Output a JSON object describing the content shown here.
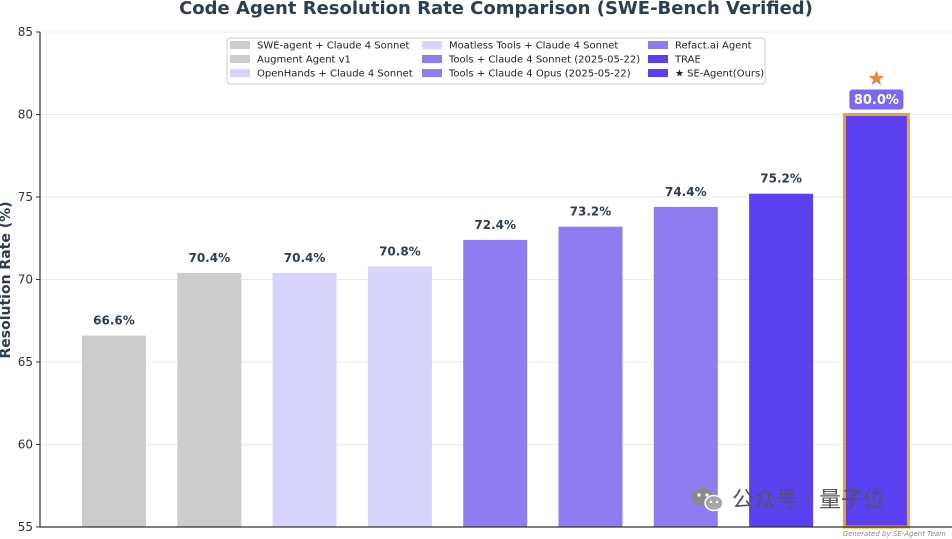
{
  "chart_data": {
    "type": "bar",
    "title": "Code Agent Resolution Rate Comparison (SWE-Bench Verified)",
    "xlabel": "",
    "ylabel": "Resolution Rate (%)",
    "ylim": [
      55,
      85
    ],
    "yticks": [
      55,
      60,
      65,
      70,
      75,
      80,
      85
    ],
    "grid": "y",
    "legend_position": "top",
    "categories": [
      "SWE-agent + Claude 4 Sonnet",
      "Augment Agent v1",
      "OpenHands + Claude 4 Sonnet",
      "Moatless Tools + Claude 4 Sonnet",
      "Tools + Claude 4 Sonnet (2025-05-22)",
      "Tools + Claude 4 Opus (2025-05-22)",
      "Refact.ai Agent",
      "TRAE",
      "★ SE-Agent(Ours)"
    ],
    "values": [
      66.6,
      70.4,
      70.4,
      70.8,
      72.4,
      73.2,
      74.4,
      75.2,
      80.0
    ],
    "data_labels": [
      "66.6%",
      "70.4%",
      "70.4%",
      "70.8%",
      "72.4%",
      "73.2%",
      "74.4%",
      "75.2%",
      "80.0%"
    ],
    "colors": [
      "#cccccc",
      "#cccccc",
      "#d9d4fb",
      "#d9d4fb",
      "#8e7cf0",
      "#8e7cf0",
      "#8e7cf0",
      "#5a40ef",
      "#5a40ef"
    ],
    "highlight_index": 8,
    "highlight_border_color": "#f0a035",
    "highlight_label_bg": "#7b68ee",
    "star_color": "#e8893a"
  },
  "watermark": {
    "text": "公众号 · 量子位"
  },
  "credit": "Generated by SE-Agent Team"
}
